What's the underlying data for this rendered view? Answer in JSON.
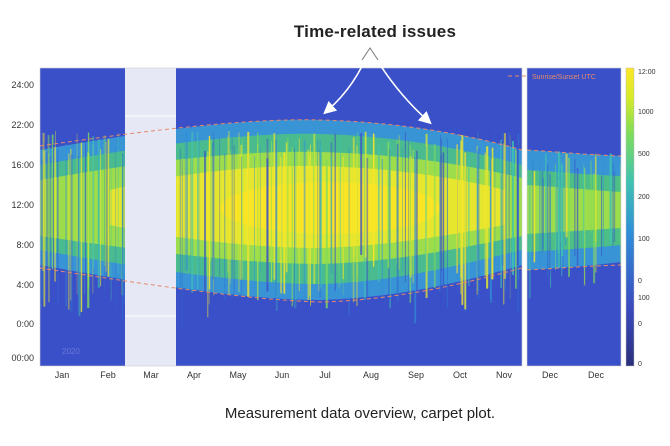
{
  "chart_data": {
    "type": "heatmap",
    "title": "Time-related issues",
    "caption": "Measurement data overview, carpet plot.",
    "xlabel": "",
    "ylabel": "",
    "month_labels": [
      "Jan",
      "Feb",
      "Mar",
      "Apr",
      "May",
      "Jun",
      "Jul",
      "Aug",
      "Sep",
      "Oct",
      "Nov",
      "Dec",
      "Dec"
    ],
    "y_tick_labels": [
      "24:00",
      "22:00",
      "16:00",
      "12:00",
      "8:00",
      "4:00",
      "0:00",
      "00:00"
    ],
    "colorbar_labels": [
      "12:00",
      "1000",
      "500",
      "200",
      "100",
      "0",
      "100",
      "0",
      "0"
    ],
    "legend_entry": "Sunrise/Sunset UTC",
    "watermark": "2020",
    "legend_position": "top-right",
    "colormap": [
      "#3b4cc0",
      "#2f8fd8",
      "#3fc3b0",
      "#7fdc5a",
      "#d6ea2a",
      "#fde725"
    ],
    "missing_data_period": "late Feb - mid Apr",
    "colors": {
      "background_low": "#3a50c8",
      "missing_data": "#e6e8f5",
      "sun_line": "#e58a6a",
      "arrow": "#ffffff"
    }
  }
}
